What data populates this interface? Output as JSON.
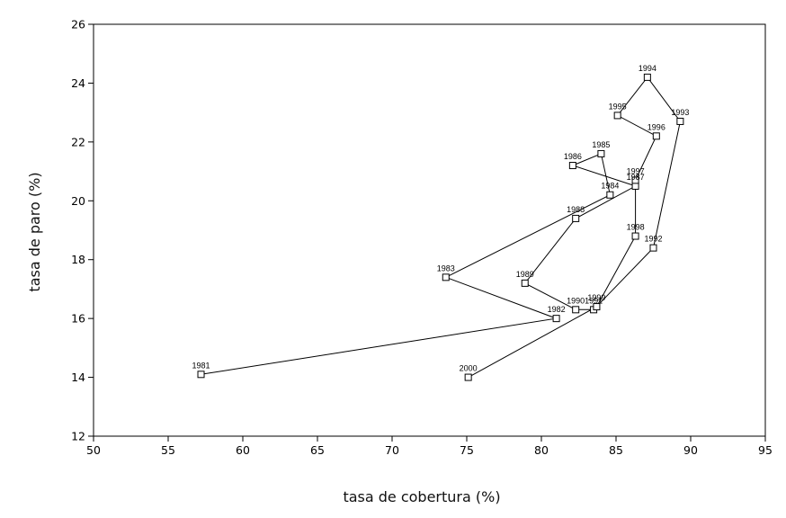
{
  "chart_data": {
    "type": "scatter",
    "connected": true,
    "title": "",
    "xlabel": "tasa de cobertura (%)",
    "ylabel": "tasa de paro (%)",
    "xlim": [
      50,
      95
    ],
    "ylim": [
      12,
      26
    ],
    "xticks": [
      50,
      55,
      60,
      65,
      70,
      75,
      80,
      85,
      90,
      95
    ],
    "yticks": [
      12,
      14,
      16,
      18,
      20,
      22,
      24,
      26
    ],
    "grid": false,
    "legend": "none",
    "line_color": "#000000",
    "marker": "square",
    "points": [
      {
        "label": "1981",
        "x": 57.2,
        "y": 14.1
      },
      {
        "label": "1982",
        "x": 81.0,
        "y": 16.0
      },
      {
        "label": "1983",
        "x": 73.6,
        "y": 17.4
      },
      {
        "label": "1984",
        "x": 84.6,
        "y": 20.2
      },
      {
        "label": "1985",
        "x": 84.0,
        "y": 21.6
      },
      {
        "label": "1986",
        "x": 82.1,
        "y": 21.2
      },
      {
        "label": "1987",
        "x": 86.3,
        "y": 20.5
      },
      {
        "label": "1988",
        "x": 82.3,
        "y": 19.4
      },
      {
        "label": "1989",
        "x": 78.9,
        "y": 17.2
      },
      {
        "label": "1990",
        "x": 82.3,
        "y": 16.3
      },
      {
        "label": "1991",
        "x": 83.5,
        "y": 16.3
      },
      {
        "label": "1992",
        "x": 87.5,
        "y": 18.4
      },
      {
        "label": "1993",
        "x": 89.3,
        "y": 22.7
      },
      {
        "label": "1994",
        "x": 87.1,
        "y": 24.2
      },
      {
        "label": "1995",
        "x": 85.1,
        "y": 22.9
      },
      {
        "label": "1996",
        "x": 87.7,
        "y": 22.2
      },
      {
        "label": "1997",
        "x": 86.3,
        "y": 20.7
      },
      {
        "label": "1998",
        "x": 86.3,
        "y": 18.8
      },
      {
        "label": "1999",
        "x": 83.7,
        "y": 16.4
      },
      {
        "label": "2000",
        "x": 75.1,
        "y": 14.0
      }
    ]
  }
}
